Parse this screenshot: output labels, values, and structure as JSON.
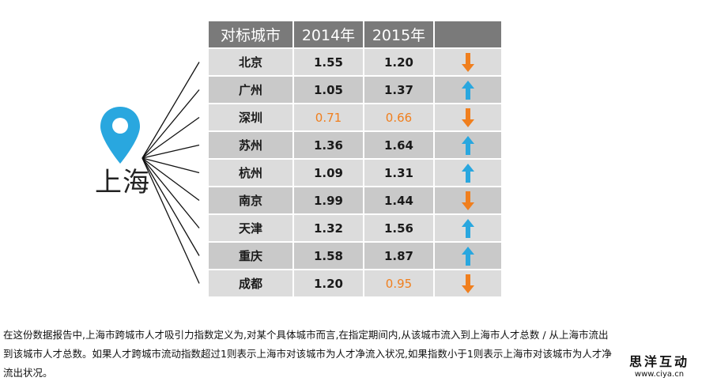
{
  "chart_data": {
    "type": "table",
    "origin_city": "上海",
    "columns": [
      "对标城市",
      "2014年",
      "2015年",
      ""
    ],
    "rows": [
      {
        "city": "北京",
        "v2014": "1.55",
        "v2015": "1.20",
        "trend": "down"
      },
      {
        "city": "广州",
        "v2014": "1.05",
        "v2015": "1.37",
        "trend": "up"
      },
      {
        "city": "深圳",
        "v2014": "0.71",
        "v2015": "0.66",
        "trend": "down"
      },
      {
        "city": "苏州",
        "v2014": "1.36",
        "v2015": "1.64",
        "trend": "up"
      },
      {
        "city": "杭州",
        "v2014": "1.09",
        "v2015": "1.31",
        "trend": "up"
      },
      {
        "city": "南京",
        "v2014": "1.99",
        "v2015": "1.44",
        "trend": "down"
      },
      {
        "city": "天津",
        "v2014": "1.32",
        "v2015": "1.56",
        "trend": "up"
      },
      {
        "city": "重庆",
        "v2014": "1.58",
        "v2015": "1.87",
        "trend": "up"
      },
      {
        "city": "成都",
        "v2014": "1.20",
        "v2015": "0.95",
        "trend": "down"
      }
    ],
    "highlight_below": 1
  },
  "note": {
    "line1": "在这份数据报告中,上海市跨城市人才吸引力指数定义为,对某个具体城市而言,在指定期间内,从该城市流入到上海市人才总数 / 从上海市流出",
    "line2": "到该城市人才总数。如果人才跨城市流动指数超过1则表示上海市对该城市为人才净流入状况,如果指数小于1则表示上海市对该城市为人才净",
    "line3": "流出状况。"
  },
  "watermark": {
    "name": "思洋互动",
    "url": "www.ciya.cn"
  },
  "colors": {
    "header": "#7a7a7a",
    "row_light": "#dcdcdc",
    "row_dark": "#c9c9c9",
    "up": "#29a7df",
    "down": "#f07f1e",
    "pin": "#29a7df"
  }
}
